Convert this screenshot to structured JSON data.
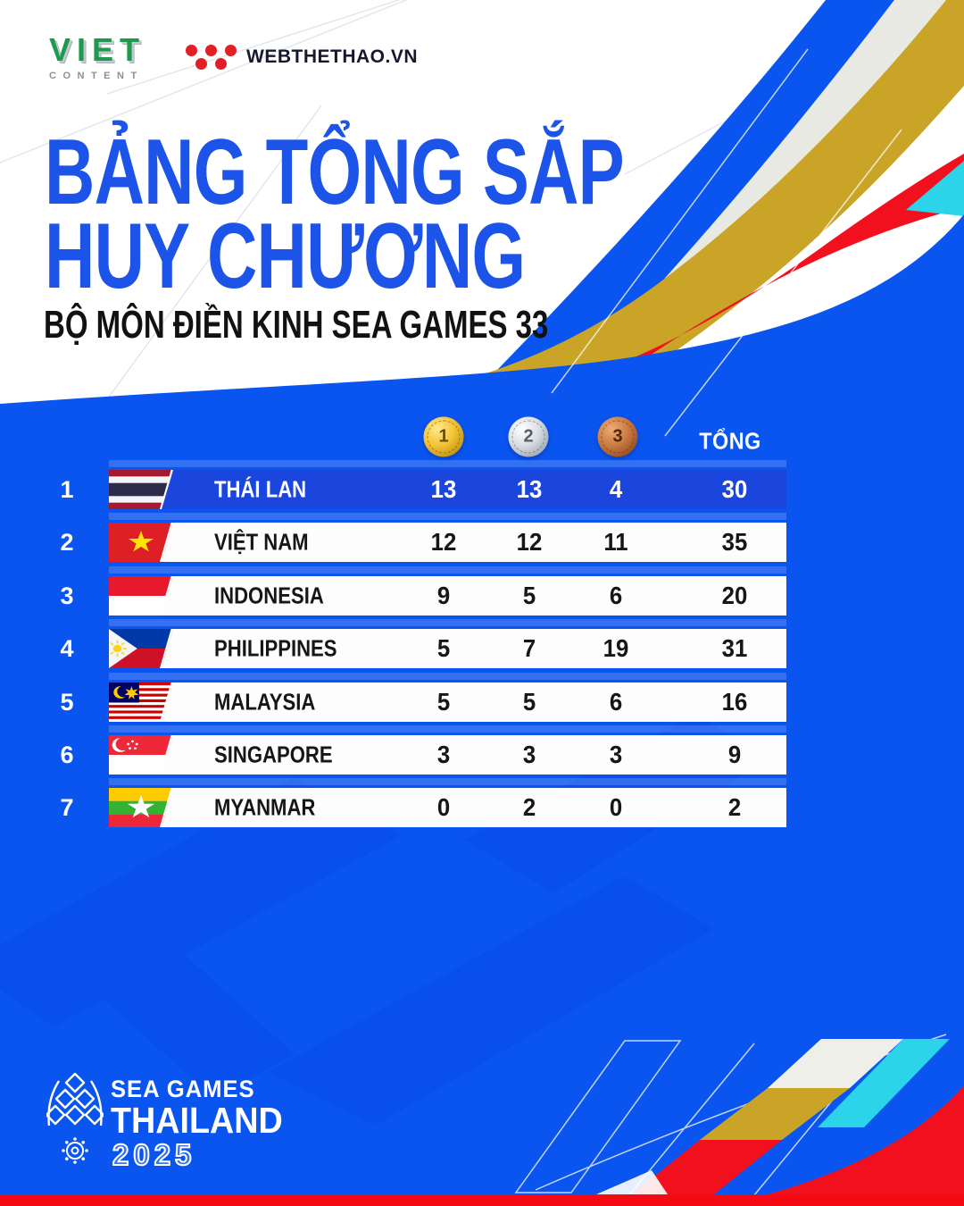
{
  "brand": {
    "viet_content": {
      "name": "VIET",
      "sub": "CONTENT"
    },
    "webthethao": {
      "name": "WEBTHETHAO.VN"
    }
  },
  "title": {
    "line1": "BẢNG TỔNG SẮP",
    "line2": "HUY CHƯƠNG",
    "subtitle": "BỘ MÔN ĐIỀN KINH SEA GAMES 33"
  },
  "table": {
    "medal_headers": [
      "1",
      "2",
      "3"
    ],
    "total_label": "TỔNG",
    "rows": [
      {
        "rank": "1",
        "country": "THÁI LAN",
        "flag": "thailand",
        "gold": "13",
        "silver": "13",
        "bronze": "4",
        "total": "30"
      },
      {
        "rank": "2",
        "country": "VIỆT NAM",
        "flag": "vietnam",
        "gold": "12",
        "silver": "12",
        "bronze": "11",
        "total": "35"
      },
      {
        "rank": "3",
        "country": "INDONESIA",
        "flag": "indonesia",
        "gold": "9",
        "silver": "5",
        "bronze": "6",
        "total": "20"
      },
      {
        "rank": "4",
        "country": "PHILIPPINES",
        "flag": "philippines",
        "gold": "5",
        "silver": "7",
        "bronze": "19",
        "total": "31"
      },
      {
        "rank": "5",
        "country": "MALAYSIA",
        "flag": "malaysia",
        "gold": "5",
        "silver": "5",
        "bronze": "6",
        "total": "16"
      },
      {
        "rank": "6",
        "country": "SINGAPORE",
        "flag": "singapore",
        "gold": "3",
        "silver": "3",
        "bronze": "3",
        "total": "9"
      },
      {
        "rank": "7",
        "country": "MYANMAR",
        "flag": "myanmar",
        "gold": "0",
        "silver": "2",
        "bronze": "0",
        "total": "2"
      }
    ]
  },
  "footer": {
    "line1": "SEA GAMES",
    "line2": "THAILAND",
    "line3": "2025"
  },
  "colors": {
    "background_blue": "#0a55f0",
    "highlight_row_blue": "#1b46de",
    "title_blue": "#1c53e9",
    "accent_red": "#f2101e",
    "accent_gold": "#c9a427",
    "accent_cyan": "#2bd4e8",
    "accent_gray": "#e9e9e4",
    "bottom_strip_red": "#f50a14"
  }
}
